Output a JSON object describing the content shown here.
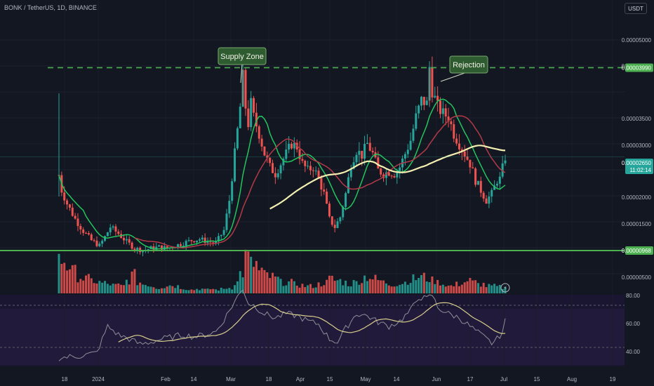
{
  "header": {
    "symbol": "BONK / TetherUS, 1D, BINANCE",
    "currency": "USDT"
  },
  "annotations": {
    "supply_zone": "Supply Zone",
    "rejection": "Rejection"
  },
  "price_axis": {
    "ticks": [
      "0.00005000",
      "0.00004500",
      "0.00003500",
      "0.00003000",
      "0.00002000",
      "0.00001500",
      "0.00000500"
    ],
    "resistance_label": "0.00003990",
    "support_label": "0.00000968",
    "current_price": "0.00002650",
    "countdown": "11:02:14"
  },
  "rsi_axis": {
    "ticks": [
      "80.00",
      "60.00",
      "40.00"
    ]
  },
  "time_axis": {
    "ticks": [
      "18",
      "2024",
      "Feb",
      "14",
      "Mar",
      "18",
      "Apr",
      "15",
      "May",
      "14",
      "Jun",
      "17",
      "Jul",
      "15",
      "Aug",
      "19"
    ]
  },
  "chart_data": {
    "type": "candlestick",
    "title": "",
    "ylim": [
      3e-07,
      5.5e-06
    ],
    "resistance_level": 3.99e-05,
    "support_level": 9.68e-06,
    "current_price": 2.65e-05,
    "price_path": [
      [
        0,
        2.38e-05
      ],
      [
        1,
        2.15e-05
      ],
      [
        3,
        1.95e-05
      ],
      [
        6,
        1.72e-05
      ],
      [
        9,
        1.54e-05
      ],
      [
        12,
        1.4e-05
      ],
      [
        15,
        1.32e-05
      ],
      [
        17,
        1.45e-05
      ],
      [
        19,
        1.6e-05
      ],
      [
        22,
        1.5e-05
      ],
      [
        25,
        1.38e-05
      ],
      [
        28,
        1.28e-05
      ],
      [
        31,
        1.25e-05
      ],
      [
        34,
        1.28e-05
      ],
      [
        37,
        1.3e-05
      ],
      [
        40,
        1.28e-05
      ],
      [
        43,
        1.32e-05
      ],
      [
        46,
        1.36e-05
      ],
      [
        49,
        1.4e-05
      ],
      [
        52,
        1.42e-05
      ],
      [
        55,
        1.38e-05
      ],
      [
        58,
        1.36e-05
      ],
      [
        61,
        1.55e-05
      ],
      [
        63,
        2e-05
      ],
      [
        65,
        2.7e-05
      ],
      [
        67,
        3.4e-05
      ],
      [
        68,
        3.85e-05
      ],
      [
        69,
        3.4e-05
      ],
      [
        70,
        3.15e-05
      ],
      [
        71,
        3.45e-05
      ],
      [
        72,
        3.25e-05
      ],
      [
        74,
        3e-05
      ],
      [
        76,
        2.7e-05
      ],
      [
        78,
        2.5e-05
      ],
      [
        80,
        2.4e-05
      ],
      [
        82,
        2.55e-05
      ],
      [
        84,
        2.7e-05
      ],
      [
        86,
        2.85e-05
      ],
      [
        88,
        2.8e-05
      ],
      [
        90,
        2.55e-05
      ],
      [
        92,
        2.45e-05
      ],
      [
        94,
        2.5e-05
      ],
      [
        96,
        2.32e-05
      ],
      [
        98,
        2.1e-05
      ],
      [
        100,
        1.72e-05
      ],
      [
        102,
        1.6e-05
      ],
      [
        104,
        1.75e-05
      ],
      [
        106,
        2.1e-05
      ],
      [
        108,
        2.55e-05
      ],
      [
        110,
        2.75e-05
      ],
      [
        112,
        2.68e-05
      ],
      [
        114,
        2.85e-05
      ],
      [
        116,
        2.7e-05
      ],
      [
        118,
        2.45e-05
      ],
      [
        120,
        2.4e-05
      ],
      [
        122,
        2.43e-05
      ],
      [
        124,
        2.4e-05
      ],
      [
        126,
        2.5e-05
      ],
      [
        128,
        2.7e-05
      ],
      [
        130,
        2.9e-05
      ],
      [
        132,
        3.25e-05
      ],
      [
        134,
        3.5e-05
      ],
      [
        136,
        3.45e-05
      ],
      [
        137,
        4e-05
      ],
      [
        138,
        3.65e-05
      ],
      [
        140,
        3.4e-05
      ],
      [
        142,
        3.3e-05
      ],
      [
        144,
        3.25e-05
      ],
      [
        146,
        3e-05
      ],
      [
        148,
        2.85e-05
      ],
      [
        150,
        2.7e-05
      ],
      [
        152,
        2.55e-05
      ],
      [
        154,
        2.3e-05
      ],
      [
        156,
        2.15e-05
      ],
      [
        158,
        2e-05
      ],
      [
        160,
        2.1e-05
      ],
      [
        162,
        2.3e-05
      ],
      [
        163,
        2.32e-05
      ],
      [
        165,
        2.65e-05
      ]
    ],
    "volume_profile": [
      0.9,
      0.75,
      0.6,
      0.45,
      0.4,
      0.35,
      0.3,
      0.28,
      0.25,
      0.22,
      0.2,
      0.35,
      0.5,
      0.3,
      0.25,
      0.2,
      0.15,
      0.18,
      0.22,
      0.2,
      0.15,
      0.12,
      0.1,
      0.12,
      0.1,
      0.12,
      0.1,
      0.12,
      0.15,
      0.3,
      0.55,
      1.0,
      0.8,
      0.6,
      0.5,
      0.45,
      0.4,
      0.3,
      0.3,
      0.25,
      0.22,
      0.2,
      0.2,
      0.25,
      0.3,
      0.4,
      0.35,
      0.3,
      0.25,
      0.3,
      0.35,
      0.45,
      0.4,
      0.35,
      0.3,
      0.25,
      0.25,
      0.3,
      0.35,
      0.4,
      0.45,
      0.4,
      0.35,
      0.3,
      0.25,
      0.2,
      0.25,
      0.3,
      0.35,
      0.3,
      0.25,
      0.2,
      0.2,
      0.18,
      0.15
    ],
    "rsi": [
      [
        0,
        20
      ],
      [
        8,
        22
      ],
      [
        14,
        25
      ],
      [
        18,
        50
      ],
      [
        22,
        42
      ],
      [
        26,
        38
      ],
      [
        30,
        33
      ],
      [
        34,
        35
      ],
      [
        38,
        38
      ],
      [
        42,
        40
      ],
      [
        46,
        42
      ],
      [
        50,
        40
      ],
      [
        54,
        42
      ],
      [
        58,
        45
      ],
      [
        60,
        52
      ],
      [
        63,
        65
      ],
      [
        66,
        78
      ],
      [
        68,
        86
      ],
      [
        70,
        72
      ],
      [
        72,
        70
      ],
      [
        76,
        62
      ],
      [
        80,
        58
      ],
      [
        84,
        62
      ],
      [
        88,
        60
      ],
      [
        92,
        55
      ],
      [
        96,
        52
      ],
      [
        100,
        38
      ],
      [
        103,
        35
      ],
      [
        106,
        48
      ],
      [
        110,
        62
      ],
      [
        114,
        60
      ],
      [
        118,
        54
      ],
      [
        122,
        50
      ],
      [
        126,
        55
      ],
      [
        130,
        65
      ],
      [
        133,
        78
      ],
      [
        136,
        76
      ],
      [
        138,
        80
      ],
      [
        140,
        68
      ],
      [
        144,
        62
      ],
      [
        148,
        58
      ],
      [
        152,
        50
      ],
      [
        156,
        42
      ],
      [
        160,
        34
      ],
      [
        162,
        38
      ],
      [
        164,
        45
      ],
      [
        165,
        55
      ]
    ],
    "series": [
      {
        "name": "",
        "color": "#22c55e"
      },
      {
        "name": "",
        "color": "#b23a48"
      },
      {
        "name": "",
        "color": "#f3efb0"
      }
    ],
    "grid": true,
    "candle_up_color": "#26a69a",
    "candle_down_color": "#ef5350",
    "level_color": "#4caf50"
  }
}
